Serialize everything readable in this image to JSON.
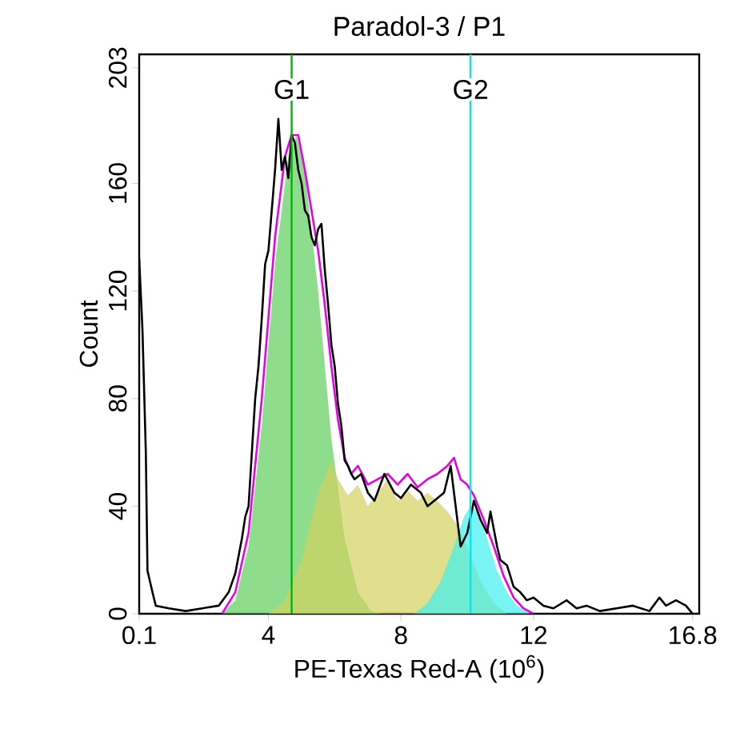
{
  "chart_data": {
    "type": "area",
    "title": "Paradol-3 / P1",
    "xlabel": "PE-Texas Red-A  (10$^{6}$)",
    "ylabel": "Count",
    "xlim": [
      0.1,
      17.0
    ],
    "xticks": [
      0.1,
      4,
      8,
      12,
      16.8
    ],
    "ylim": [
      0,
      208
    ],
    "yticks": [
      0,
      40,
      80,
      120,
      160,
      203
    ],
    "grid": false,
    "series": [
      {
        "color": "#5ccf5c",
        "x": [
          2.6,
          3.0,
          3.4,
          3.8,
          4.2,
          4.6,
          4.85,
          5.1,
          5.5,
          5.9,
          6.3,
          6.7,
          7.1,
          7.4
        ],
        "values": [
          0,
          5,
          25,
          70,
          130,
          170,
          178,
          165,
          120,
          65,
          28,
          8,
          1,
          0
        ]
      },
      {
        "color": "#d2d25e",
        "x": [
          4.0,
          4.5,
          5.0,
          5.5,
          5.9,
          6.1,
          6.4,
          6.7,
          7.0,
          7.3,
          7.6,
          7.9,
          8.2,
          8.5,
          8.8,
          9.1,
          9.4,
          9.7,
          10.0,
          10.4,
          10.8,
          11.2
        ],
        "values": [
          0,
          5,
          20,
          45,
          57,
          50,
          44,
          48,
          40,
          45,
          50,
          42,
          46,
          42,
          45,
          42,
          38,
          33,
          25,
          12,
          4,
          0
        ]
      },
      {
        "color": "#3ff0f0",
        "x": [
          8.4,
          8.8,
          9.2,
          9.6,
          9.9,
          10.1,
          10.3,
          10.6,
          10.9,
          11.2,
          11.5,
          11.9
        ],
        "values": [
          0,
          4,
          12,
          25,
          36,
          40,
          38,
          28,
          16,
          8,
          3,
          0
        ]
      },
      {
        "type": "line",
        "color": "#e600e6",
        "x": [
          2.6,
          3.0,
          3.4,
          3.8,
          4.2,
          4.5,
          4.7,
          4.9,
          5.1,
          5.3,
          5.5,
          5.7,
          5.9,
          6.1,
          6.3,
          6.5,
          6.7,
          7.0,
          7.3,
          7.6,
          7.9,
          8.2,
          8.5,
          8.8,
          9.1,
          9.4,
          9.6,
          9.8,
          10.0,
          10.2,
          10.5,
          10.8,
          11.1,
          11.4,
          11.7,
          12.0
        ],
        "values": [
          0,
          8,
          30,
          80,
          140,
          170,
          178,
          178,
          165,
          150,
          135,
          115,
          92,
          72,
          58,
          52,
          55,
          48,
          50,
          52,
          48,
          52,
          47,
          50,
          52,
          55,
          58,
          50,
          48,
          44,
          35,
          25,
          14,
          6,
          2,
          0
        ]
      },
      {
        "type": "line",
        "color": "#000000",
        "x": [
          0.1,
          0.2,
          0.3,
          0.35,
          0.5,
          0.6,
          1.0,
          1.5,
          2.0,
          2.5,
          2.8,
          3.0,
          3.2,
          3.3,
          3.4,
          3.5,
          3.6,
          3.7,
          3.8,
          3.9,
          4.0,
          4.1,
          4.2,
          4.3,
          4.4,
          4.5,
          4.6,
          4.7,
          4.8,
          4.9,
          5.0,
          5.1,
          5.2,
          5.3,
          5.4,
          5.5,
          5.6,
          5.7,
          5.8,
          5.9,
          6.0,
          6.1,
          6.2,
          6.3,
          6.4,
          6.5,
          6.6,
          6.8,
          7.0,
          7.2,
          7.5,
          7.8,
          8.0,
          8.3,
          8.6,
          8.8,
          9.0,
          9.3,
          9.5,
          9.6,
          9.8,
          10.0,
          10.2,
          10.4,
          10.6,
          10.7,
          10.9,
          11.0,
          11.2,
          11.4,
          11.6,
          11.8,
          12.0,
          12.3,
          12.6,
          13.0,
          13.3,
          13.6,
          14.0,
          14.5,
          15.0,
          15.5,
          15.8,
          16.0,
          16.3,
          16.6,
          16.8
        ],
        "values": [
          132,
          105,
          60,
          16,
          8,
          3,
          2,
          1,
          2,
          3,
          8,
          15,
          28,
          36,
          40,
          60,
          80,
          92,
          110,
          130,
          135,
          150,
          165,
          184,
          165,
          170,
          162,
          178,
          175,
          165,
          160,
          150,
          148,
          140,
          137,
          143,
          145,
          128,
          115,
          100,
          92,
          78,
          70,
          57,
          55,
          52,
          50,
          52,
          45,
          42,
          52,
          45,
          43,
          48,
          45,
          40,
          42,
          45,
          55,
          45,
          25,
          30,
          42,
          35,
          30,
          38,
          25,
          20,
          18,
          10,
          8,
          5,
          6,
          3,
          2,
          5,
          2,
          3,
          1,
          2,
          3,
          1,
          6,
          3,
          5,
          3,
          0
        ]
      }
    ],
    "ref_lines": [
      {
        "axis": "x",
        "value": 4.7,
        "label": "G1",
        "color": "#00b400"
      },
      {
        "axis": "x",
        "value": 10.1,
        "label": "G2",
        "color": "#00e8f0"
      }
    ]
  }
}
